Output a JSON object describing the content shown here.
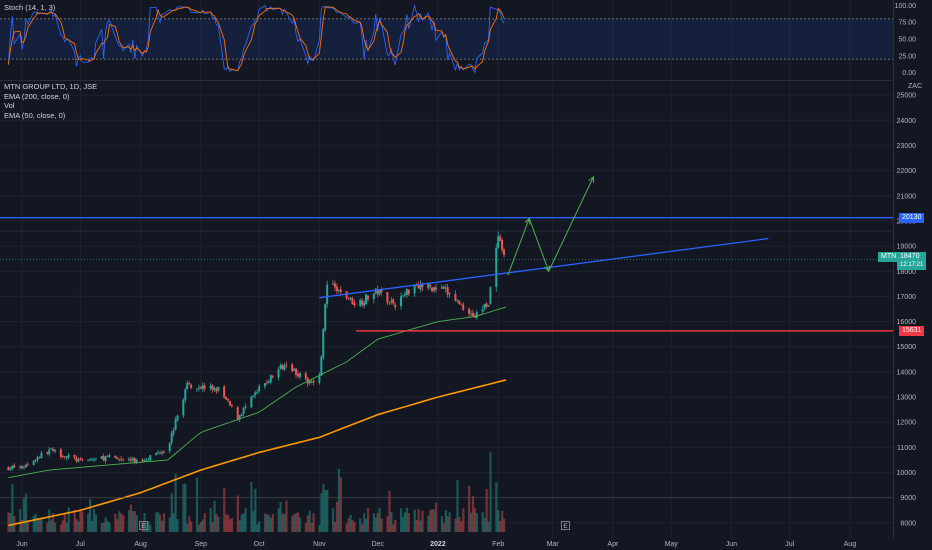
{
  "header": {
    "stoch_label": "Stoch (14, 1, 3)",
    "symbol_line": "MTN GROUP LTD, 1D, JSE",
    "indicators": [
      "EMA (200, close, 0)",
      "Vol",
      "EMA (50, close, 0)"
    ],
    "currency": "ZAC"
  },
  "badges": {
    "resistance": "20130",
    "support": "15631",
    "symbol": "MTN",
    "last_price": "18470",
    "countdown": "12:17:21"
  },
  "events": [
    "E",
    "E"
  ],
  "colors": {
    "up": "#26a69a",
    "down": "#ef5350",
    "ema200": "#ff9800",
    "ema50": "#4caf50",
    "resistance": "#2962ff",
    "support": "#f23645",
    "trendline": "#2962ff",
    "stoch_k": "#2962ff",
    "stoch_d": "#ff6d00",
    "projection": "#4caf50"
  },
  "chart_data": {
    "type": "candlestick",
    "price_axis": {
      "ticks": [
        8000,
        9000,
        10000,
        11000,
        12000,
        13000,
        14000,
        15000,
        16000,
        17000,
        18000,
        19000,
        20000,
        21000,
        22000,
        23000,
        24000,
        25000
      ],
      "range": [
        7400,
        25600
      ]
    },
    "stoch_axis": {
      "ticks": [
        0,
        25,
        50,
        75,
        100
      ],
      "bands": [
        20,
        80
      ],
      "range": [
        -5,
        105
      ]
    },
    "time_axis": [
      "Jun",
      "Jul",
      "Aug",
      "Sep",
      "Oct",
      "Nov",
      "Dec",
      "2022",
      "Feb",
      "Mar",
      "Apr",
      "May",
      "Jun",
      "Jul",
      "Aug"
    ],
    "price_path": [
      [
        "2021-06-01",
        10200
      ],
      [
        "2021-06-15",
        10900
      ],
      [
        "2021-07-01",
        10450
      ],
      [
        "2021-07-15",
        10600
      ],
      [
        "2021-08-01",
        10450
      ],
      [
        "2021-08-15",
        11000
      ],
      [
        "2021-08-25",
        13500
      ],
      [
        "2021-09-10",
        13300
      ],
      [
        "2021-09-20",
        12200
      ],
      [
        "2021-10-01",
        13300
      ],
      [
        "2021-10-15",
        14400
      ],
      [
        "2021-10-25",
        13600
      ],
      [
        "2021-11-01",
        13800
      ],
      [
        "2021-11-05",
        17500
      ],
      [
        "2021-11-20",
        16700
      ],
      [
        "2021-12-01",
        17200
      ],
      [
        "2021-12-10",
        16700
      ],
      [
        "2021-12-20",
        17500
      ],
      [
        "2022-01-05",
        17200
      ],
      [
        "2022-01-20",
        16200
      ],
      [
        "2022-01-27",
        16800
      ],
      [
        "2022-02-01",
        19300
      ],
      [
        "2022-02-04",
        18470
      ]
    ],
    "ema200": [
      [
        "2021-05-25",
        7900
      ],
      [
        "2021-07-01",
        8500
      ],
      [
        "2021-08-01",
        9200
      ],
      [
        "2021-09-01",
        10100
      ],
      [
        "2021-10-01",
        10800
      ],
      [
        "2021-11-01",
        11400
      ],
      [
        "2021-12-01",
        12300
      ],
      [
        "2022-01-01",
        13000
      ],
      [
        "2022-02-06",
        13700
      ]
    ],
    "ema50": [
      [
        "2021-05-25",
        9800
      ],
      [
        "2021-06-15",
        10100
      ],
      [
        "2021-07-15",
        10300
      ],
      [
        "2021-08-15",
        10500
      ],
      [
        "2021-09-01",
        11600
      ],
      [
        "2021-10-01",
        12400
      ],
      [
        "2021-10-20",
        13400
      ],
      [
        "2021-11-15",
        14400
      ],
      [
        "2021-12-01",
        15300
      ],
      [
        "2022-01-01",
        16000
      ],
      [
        "2022-01-20",
        16200
      ],
      [
        "2022-02-06",
        16600
      ]
    ],
    "levels": {
      "resistance": 20130,
      "support": 15631,
      "last_price": 18470
    },
    "trendline": [
      [
        "2021-11-01",
        16950
      ],
      [
        "2022-06-20",
        19300
      ]
    ],
    "projection_path": [
      [
        "2022-02-06",
        17850
      ],
      [
        "2022-02-17",
        20100
      ],
      [
        "2022-02-27",
        18000
      ],
      [
        "2022-03-22",
        21750
      ]
    ],
    "volume_range": [
      0,
      100
    ]
  }
}
